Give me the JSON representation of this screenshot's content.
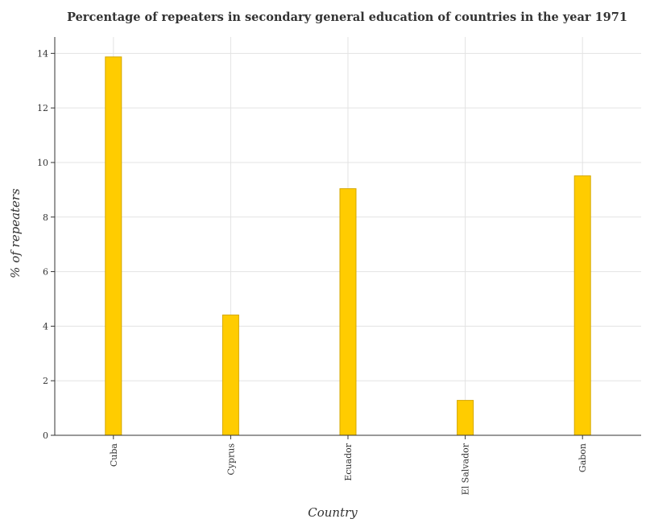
{
  "chart_data": {
    "type": "bar",
    "title": "Percentage of repeaters in secondary general education of countries in the year 1971",
    "xlabel": "Country",
    "ylabel": "% of repeaters",
    "categories": [
      "Cuba",
      "Cyprus",
      "Ecuador",
      "El Salvador",
      "Gabon"
    ],
    "values": [
      13.87,
      4.41,
      9.04,
      1.28,
      9.51
    ],
    "ylim": [
      0,
      14.6
    ],
    "yticks": [
      0,
      2,
      4,
      6,
      8,
      10,
      12,
      14
    ],
    "grid": true,
    "legend": "none",
    "bar_color": "#ffcc00",
    "bar_edge_color": "#d6a800"
  }
}
